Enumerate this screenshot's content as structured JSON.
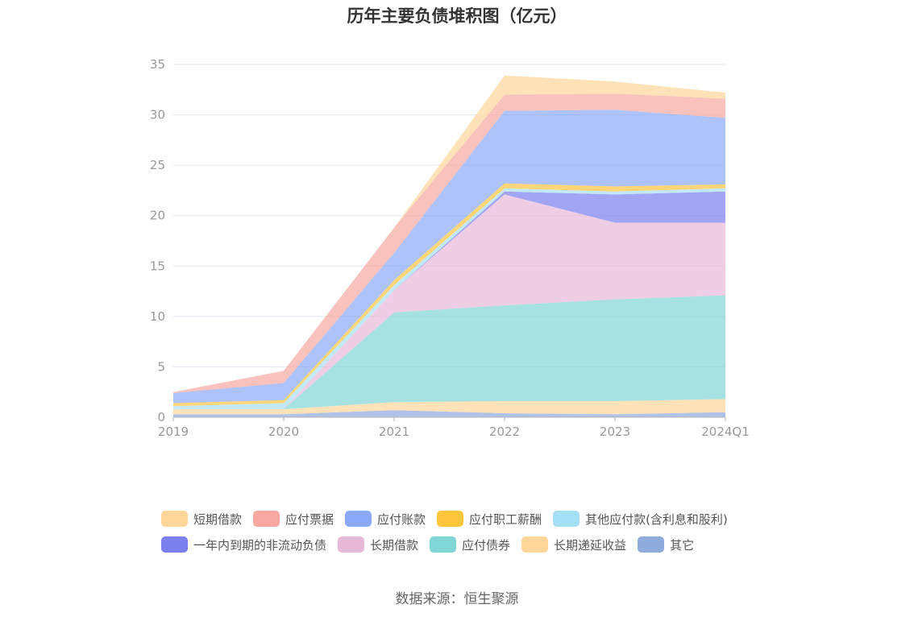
{
  "chart_data": {
    "type": "area",
    "title": "历年主要负债堆积图（亿元）",
    "categories": [
      "2019",
      "2020",
      "2021",
      "2022",
      "2023",
      "2024Q1"
    ],
    "ylim": [
      0,
      35
    ],
    "yticks": [
      0,
      5,
      10,
      15,
      20,
      25,
      30,
      35
    ],
    "grid": true,
    "legend_position": "bottom",
    "series": [
      {
        "name": "其它",
        "color": "#8faadc",
        "values": [
          0.3,
          0.3,
          0.7,
          0.4,
          0.3,
          0.5
        ]
      },
      {
        "name": "长期递延收益",
        "color": "#ffd699",
        "values": [
          0.5,
          0.5,
          0.8,
          1.2,
          1.3,
          1.3
        ]
      },
      {
        "name": "应付债券",
        "color": "#80d6d6",
        "values": [
          0,
          0,
          8.9,
          9.5,
          10.1,
          10.3
        ]
      },
      {
        "name": "长期借款",
        "color": "#e8b8d8",
        "values": [
          0,
          0,
          2.2,
          11.0,
          7.6,
          7.2
        ]
      },
      {
        "name": "一年内到期的非流动负债",
        "color": "#7b7ff0",
        "values": [
          0,
          0,
          0,
          0.3,
          2.8,
          3.1
        ]
      },
      {
        "name": "其他应付款(含利息和股利)",
        "color": "#a6e0f7",
        "values": [
          0.3,
          0.6,
          0.5,
          0.3,
          0.3,
          0.3
        ]
      },
      {
        "name": "应付职工薪酬",
        "color": "#ffc53d",
        "values": [
          0.3,
          0.3,
          0.5,
          0.5,
          0.5,
          0.4
        ]
      },
      {
        "name": "应付账款",
        "color": "#8aa9f8",
        "values": [
          1.0,
          1.7,
          2.7,
          7.2,
          7.6,
          6.6
        ]
      },
      {
        "name": "应付票据",
        "color": "#f7a8a0",
        "values": [
          0.1,
          1.2,
          2.5,
          1.6,
          1.6,
          1.9
        ]
      },
      {
        "name": "短期借款",
        "color": "#ffd699",
        "values": [
          0,
          0,
          0,
          1.9,
          1.2,
          0.6
        ]
      }
    ],
    "legend": [
      [
        "短期借款",
        "应付票据",
        "应付账款",
        "应付职工薪酬",
        "其他应付款(含利息和股利)"
      ],
      [
        "一年内到期的非流动负债",
        "长期借款",
        "应付债券",
        "长期递延收益",
        "其它"
      ]
    ]
  },
  "source": "数据来源：恒生聚源"
}
